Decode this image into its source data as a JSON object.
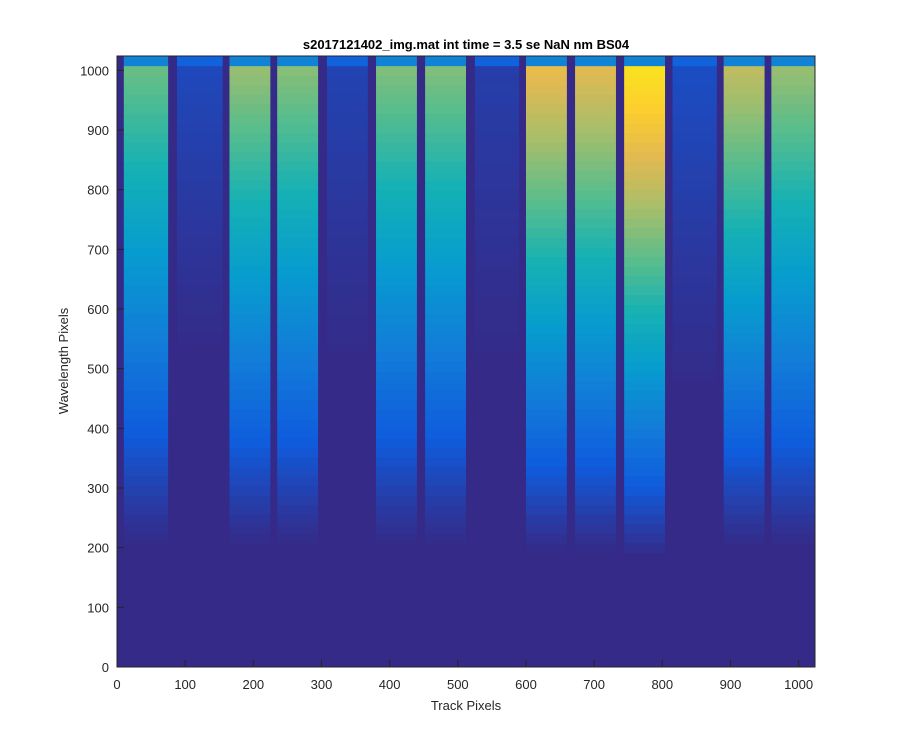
{
  "chart_data": {
    "type": "heatmap",
    "title": "s2017121402_img.mat int time = 3.5 se  NaN nm BS04",
    "xlabel": "Track Pixels",
    "ylabel": "Wavelength Pixels",
    "xlim": [
      0,
      1024
    ],
    "ylim": [
      0,
      1024
    ],
    "xticks": [
      0,
      100,
      200,
      300,
      400,
      500,
      600,
      700,
      800,
      900,
      1000
    ],
    "yticks": [
      0,
      100,
      200,
      300,
      400,
      500,
      600,
      700,
      800,
      900,
      1000
    ],
    "grid": false,
    "colormap": "parula",
    "background_level": 0.0,
    "stripes": [
      {
        "x_start": 10,
        "x_end": 75,
        "peak": 0.52,
        "y_onset": 200
      },
      {
        "x_start": 88,
        "x_end": 155,
        "peak": 0.06,
        "y_onset": 500
      },
      {
        "x_start": 165,
        "x_end": 225,
        "peak": 0.58,
        "y_onset": 200
      },
      {
        "x_start": 235,
        "x_end": 295,
        "peak": 0.56,
        "y_onset": 200
      },
      {
        "x_start": 308,
        "x_end": 368,
        "peak": 0.05,
        "y_onset": 480
      },
      {
        "x_start": 380,
        "x_end": 440,
        "peak": 0.55,
        "y_onset": 200
      },
      {
        "x_start": 452,
        "x_end": 512,
        "peak": 0.55,
        "y_onset": 200
      },
      {
        "x_start": 525,
        "x_end": 590,
        "peak": 0.04,
        "y_onset": 480
      },
      {
        "x_start": 600,
        "x_end": 660,
        "peak": 0.72,
        "y_onset": 190
      },
      {
        "x_start": 672,
        "x_end": 732,
        "peak": 0.7,
        "y_onset": 190
      },
      {
        "x_start": 744,
        "x_end": 804,
        "peak": 0.88,
        "y_onset": 180
      },
      {
        "x_start": 815,
        "x_end": 880,
        "peak": 0.07,
        "y_onset": 440
      },
      {
        "x_start": 890,
        "x_end": 950,
        "peak": 0.64,
        "y_onset": 200
      },
      {
        "x_start": 960,
        "x_end": 1024,
        "peak": 0.58,
        "y_onset": 200
      }
    ]
  }
}
